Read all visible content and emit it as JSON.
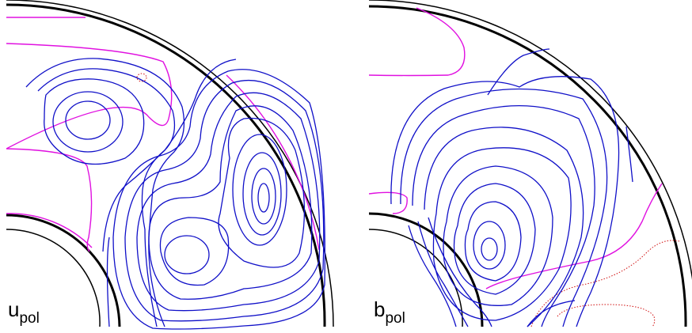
{
  "panels": [
    {
      "label_main": "u",
      "label_sub": "pol"
    },
    {
      "label_main": "b",
      "label_sub": "pol"
    }
  ],
  "colors": {
    "shell": "#000000",
    "positive_contour": "#1010c8",
    "zero_contour": "#e010e0",
    "negative_contour": "#d01010"
  }
}
